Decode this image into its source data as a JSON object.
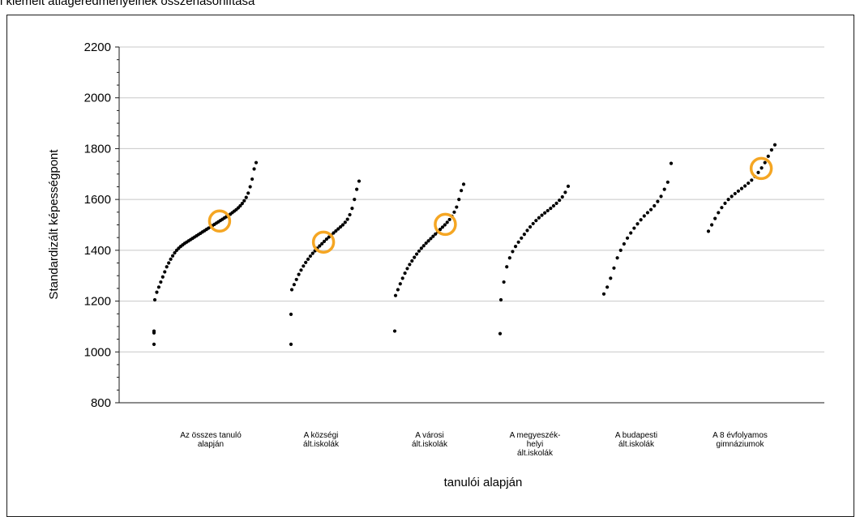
{
  "caption": "i kiemelt átlageredményeinek összehasonlítása",
  "chart_data": {
    "type": "scatter",
    "title": "",
    "xlabel": "tanulói alapján",
    "ylabel": "Standardizált képességpont",
    "ylim": [
      800,
      2200
    ],
    "yticks": [
      800,
      1000,
      1200,
      1400,
      1600,
      1800,
      2000,
      2200
    ],
    "grid": "horizontal",
    "marker_color": "#000000",
    "highlight_color": "#f5a623",
    "categories": [
      [
        "Az összes tanuló",
        "alapján"
      ],
      [
        "A községi",
        "ált.iskolák"
      ],
      [
        "A városi",
        "ált.iskolák"
      ],
      [
        "A megyeszék-",
        "helyi",
        "ált.iskolák"
      ],
      [
        "A budapesti",
        "ált.iskolák"
      ],
      [
        "A 8 évfolyamos",
        "gimnáziumok"
      ]
    ],
    "series": [
      {
        "outliers": [
          1030,
          1075,
          1082
        ],
        "values": [
          1205,
          1235,
          1255,
          1275,
          1295,
          1315,
          1335,
          1350,
          1365,
          1378,
          1390,
          1400,
          1408,
          1415,
          1421,
          1427,
          1432,
          1437,
          1442,
          1447,
          1452,
          1457,
          1462,
          1467,
          1472,
          1477,
          1482,
          1487,
          1492,
          1497,
          1502,
          1507,
          1512,
          1517,
          1522,
          1527,
          1532,
          1537,
          1542,
          1548,
          1554,
          1560,
          1567,
          1575,
          1584,
          1595,
          1608,
          1625,
          1650,
          1680,
          1720,
          1745
        ],
        "highlight": 1515
      },
      {
        "outliers": [
          1030,
          1148
        ],
        "values": [
          1245,
          1265,
          1285,
          1305,
          1322,
          1338,
          1352,
          1365,
          1377,
          1388,
          1398,
          1408,
          1417,
          1426,
          1435,
          1444,
          1452,
          1460,
          1468,
          1476,
          1484,
          1492,
          1500,
          1510,
          1522,
          1540,
          1565,
          1600,
          1640,
          1672
        ],
        "highlight": 1432
      },
      {
        "outliers": [
          1082
        ],
        "values": [
          1222,
          1245,
          1268,
          1290,
          1310,
          1328,
          1344,
          1358,
          1372,
          1385,
          1397,
          1408,
          1418,
          1428,
          1437,
          1446,
          1455,
          1464,
          1473,
          1482,
          1491,
          1500,
          1510,
          1521,
          1534,
          1550,
          1570,
          1600,
          1635,
          1660
        ],
        "highlight": 1502
      },
      {
        "outliers": [
          1072
        ],
        "values": [
          1205,
          1275,
          1335,
          1370,
          1395,
          1415,
          1432,
          1448,
          1463,
          1478,
          1492,
          1505,
          1517,
          1528,
          1538,
          1547,
          1556,
          1565,
          1575,
          1585,
          1597,
          1610,
          1628,
          1652
        ],
        "highlight": null
      },
      {
        "outliers": [],
        "values": [
          1228,
          1255,
          1290,
          1330,
          1370,
          1400,
          1425,
          1448,
          1468,
          1487,
          1504,
          1520,
          1535,
          1548,
          1560,
          1575,
          1592,
          1612,
          1640,
          1668,
          1742
        ],
        "highlight": null
      },
      {
        "outliers": [],
        "values": [
          1475,
          1500,
          1525,
          1548,
          1568,
          1585,
          1600,
          1612,
          1623,
          1633,
          1643,
          1653,
          1664,
          1676,
          1690,
          1706,
          1724,
          1745,
          1770,
          1795,
          1815
        ],
        "highlight": 1722
      }
    ]
  }
}
